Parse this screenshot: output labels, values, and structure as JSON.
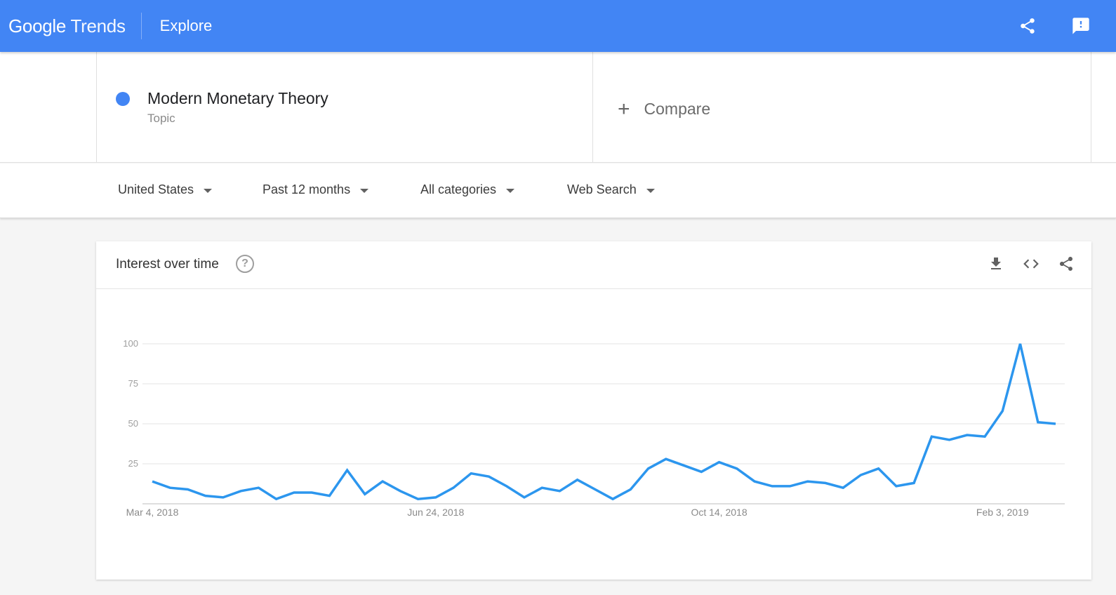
{
  "header": {
    "logo_brand": "Google",
    "logo_product": "Trends",
    "section": "Explore",
    "bg_color": "#4285f4",
    "share_icon": "share-icon",
    "feedback_icon": "feedback-icon"
  },
  "term": {
    "name": "Modern Monetary Theory",
    "type": "Topic",
    "color": "#4285f4"
  },
  "compare": {
    "plus": "+",
    "label": "Compare"
  },
  "filters": [
    {
      "label": "United States"
    },
    {
      "label": "Past 12 months"
    },
    {
      "label": "All categories"
    },
    {
      "label": "Web Search"
    }
  ],
  "card": {
    "title": "Interest over time",
    "help_glyph": "?",
    "download_icon": "download-icon",
    "embed_icon": "embed-icon",
    "share_icon": "share-icon"
  },
  "chart_data": {
    "type": "line",
    "title": "",
    "xlabel": "",
    "ylabel": "",
    "ylim": [
      0,
      100
    ],
    "yticks": [
      25,
      50,
      75,
      100
    ],
    "xtick_labels": [
      "Mar 4, 2018",
      "Jun 24, 2018",
      "Oct 14, 2018",
      "Feb 3, 2019"
    ],
    "xtick_index": [
      0,
      16,
      32,
      48
    ],
    "grid": true,
    "series": [
      {
        "color": "#2c96ee",
        "values": [
          14,
          10,
          9,
          5,
          4,
          8,
          10,
          3,
          7,
          7,
          5,
          21,
          6,
          14,
          8,
          3,
          4,
          10,
          19,
          17,
          11,
          4,
          10,
          8,
          15,
          9,
          3,
          9,
          22,
          28,
          24,
          20,
          26,
          22,
          14,
          11,
          11,
          14,
          13,
          10,
          18,
          22,
          11,
          13,
          42,
          40,
          43,
          42,
          58,
          100,
          51,
          50
        ]
      }
    ]
  }
}
